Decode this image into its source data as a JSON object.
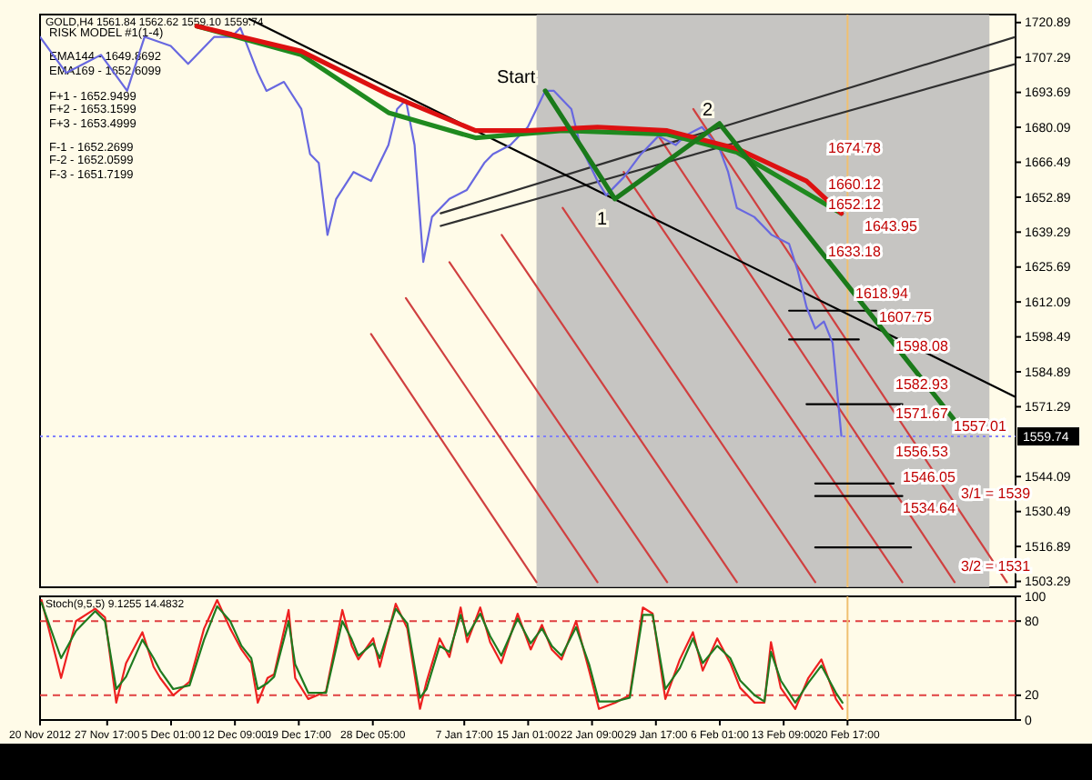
{
  "chart_data": [
    {
      "type": "line",
      "title": "GOLD,H4 1561.84 1562.62 1559.10 1559.74",
      "annotations": [
        "RISK MODEL #1(1-4)",
        "EMA144 - 1649.8692",
        "EMA169 - 1652.6099",
        "F+1 - 1652.9499",
        "F+2 - 1653.1599",
        "F+3 - 1653.4999",
        "F-1 - 1652.2699",
        "F-2 - 1652.0599",
        "F-3 - 1651.7199",
        "Start",
        "1",
        "2",
        "1674.78",
        "1660.12",
        "1652.12",
        "1643.95",
        "1633.18",
        "1618.94",
        "1607.75",
        "1598.08",
        "1582.93",
        "1571.67",
        "1556.53",
        "1546.05",
        "1534.64",
        "1557.01",
        "3/1 = 1539",
        "3/2 = 1531"
      ],
      "xlim": [
        "2012-11-20",
        "2013-03-12"
      ],
      "ylim": [
        1501,
        1724
      ],
      "yticks": [
        1720.89,
        1707.29,
        1693.69,
        1680.09,
        1666.49,
        1652.89,
        1639.29,
        1625.69,
        1612.09,
        1598.49,
        1584.89,
        1571.29,
        1544.09,
        1530.49,
        1516.89,
        1503.29
      ],
      "tick_labels": "y",
      "bands": [
        {
          "axis": "x",
          "from": "2013-01-16",
          "to": "2013-03-09",
          "color": "#b8b8b8"
        }
      ],
      "ref_lines": [
        {
          "axis": "y",
          "value": 1559.74,
          "label": "1559.74",
          "color": "#8080ff",
          "line_style": "dotted"
        },
        {
          "axis": "x",
          "value": "2013-02-20T17:00",
          "color": "#f0c070"
        }
      ],
      "series": [
        {
          "color": "#d04040",
          "x": [
            "2012-12-28",
            "2013-01-16"
          ],
          "values": [
            1599.6,
            1503
          ]
        },
        {
          "color": "#d04040",
          "x": [
            "2013-01-01",
            "2013-01-23"
          ],
          "values": [
            1613.6,
            1503
          ]
        },
        {
          "color": "#d04040",
          "x": [
            "2013-01-06",
            "2013-01-31"
          ],
          "values": [
            1627.6,
            1503
          ]
        },
        {
          "color": "#d04040",
          "x": [
            "2013-01-12",
            "2013-02-08"
          ],
          "values": [
            1638.2,
            1503
          ]
        },
        {
          "color": "#d04040",
          "x": [
            "2013-01-19",
            "2013-02-17"
          ],
          "values": [
            1648.7,
            1503
          ]
        },
        {
          "color": "#d04040",
          "x": [
            "2013-01-26",
            "2013-02-27"
          ],
          "values": [
            1662.7,
            1503
          ]
        },
        {
          "color": "#d04040",
          "x": [
            "2013-01-30",
            "2013-03-05"
          ],
          "values": [
            1676.7,
            1503
          ]
        },
        {
          "color": "#d04040",
          "x": [
            "2013-02-03",
            "2013-03-11"
          ],
          "values": [
            1687.2,
            1503
          ]
        },
        {
          "color": "#303030",
          "x": [
            "2013-01-05",
            "2013-03-12"
          ],
          "values": [
            1646.6,
            1715.3
          ]
        },
        {
          "color": "#303030",
          "x": [
            "2013-01-05",
            "2013-03-12"
          ],
          "values": [
            1641.7,
            1704.8
          ]
        },
        {
          "color": "#000000",
          "x": [
            "2012-12-14",
            "2013-03-12"
          ],
          "values": [
            1722.3,
            1575.1
          ]
        },
        {
          "color": "#000000",
          "x": [
            "2013-02-14",
            "2013-02-24"
          ],
          "values": [
            1608.7,
            1608.7
          ]
        },
        {
          "color": "#000000",
          "x": [
            "2013-02-14",
            "2013-02-22"
          ],
          "values": [
            1597.5,
            1597.5
          ]
        },
        {
          "color": "#000000",
          "x": [
            "2013-02-16",
            "2013-02-27"
          ],
          "values": [
            1572.3,
            1572.3
          ]
        },
        {
          "color": "#000000",
          "x": [
            "2013-02-17",
            "2013-02-26"
          ],
          "values": [
            1541.4,
            1541.4
          ]
        },
        {
          "color": "#000000",
          "x": [
            "2013-02-17",
            "2013-02-27"
          ],
          "values": [
            1536.5,
            1536.5
          ]
        },
        {
          "color": "#000000",
          "x": [
            "2013-02-17",
            "2013-02-28"
          ],
          "values": [
            1516.5,
            1516.5
          ]
        },
        {
          "color": "#6868e0",
          "x": [
            "2012-11-20",
            "2012-11-23",
            "2012-11-25",
            "2012-11-27",
            "2012-11-30",
            "2012-12-02",
            "2012-12-05",
            "2012-12-07",
            "2012-12-10",
            "2012-12-12",
            "2012-12-13",
            "2012-12-15",
            "2012-12-16",
            "2012-12-18",
            "2012-12-20",
            "2012-12-21",
            "2012-12-22",
            "2012-12-23",
            "2012-12-24",
            "2012-12-26",
            "2012-12-28",
            "2012-12-30",
            "2012-12-31",
            "2013-01-01",
            "2013-01-02",
            "2013-01-03",
            "2013-01-04",
            "2013-01-06",
            "2013-01-08",
            "2013-01-10",
            "2013-01-11",
            "2013-01-13",
            "2013-01-15",
            "2013-01-17",
            "2013-01-18",
            "2013-01-20",
            "2013-01-21",
            "2013-01-23",
            "2013-01-24",
            "2013-01-26",
            "2013-01-28",
            "2013-01-30",
            "2013-02-01",
            "2013-02-02",
            "2013-02-04",
            "2013-02-06",
            "2013-02-07",
            "2013-02-08",
            "2013-02-10",
            "2013-02-12",
            "2013-02-14",
            "2013-02-15",
            "2013-02-16",
            "2013-02-17",
            "2013-02-18",
            "2013-02-19",
            "2013-02-20"
          ],
          "values": [
            1715.3,
            1701.3,
            1704.8,
            1708.3,
            1694.3,
            1715.3,
            1711.8,
            1704.8,
            1715.3,
            1715.3,
            1718.8,
            1701.3,
            1694.3,
            1697.8,
            1687.2,
            1669.7,
            1666.2,
            1638.2,
            1652.2,
            1662.7,
            1659.2,
            1673.2,
            1687.2,
            1690.7,
            1673.2,
            1627.7,
            1645.2,
            1652.2,
            1655.7,
            1666.2,
            1669.7,
            1673.2,
            1680.2,
            1694.3,
            1694.3,
            1687.2,
            1673.2,
            1659.2,
            1653.6,
            1660.6,
            1669.7,
            1676.7,
            1673.2,
            1676.7,
            1680.2,
            1671.8,
            1662.7,
            1648.7,
            1645.2,
            1638.2,
            1634.7,
            1624.2,
            1610.1,
            1601.7,
            1604.5,
            1596.1,
            1560
          ]
        },
        {
          "color": "#1f8a1f",
          "x": [
            "2012-12-08",
            "2012-12-20",
            "2012-12-30",
            "2013-01-09",
            "2013-01-19",
            "2013-01-31",
            "2013-02-08",
            "2013-02-20"
          ],
          "values": [
            1719.5,
            1708.3,
            1685.8,
            1676.0,
            1678.8,
            1677.4,
            1670.4,
            1646.6
          ]
        },
        {
          "color": "#dd1111",
          "x": [
            "2012-12-08",
            "2012-12-20",
            "2012-12-30",
            "2013-01-09",
            "2013-01-15",
            "2013-01-23",
            "2013-01-31",
            "2013-02-08",
            "2013-02-16",
            "2013-02-20"
          ],
          "values": [
            1719.5,
            1709.7,
            1692.9,
            1678.8,
            1678.8,
            1680.2,
            1678.8,
            1671.8,
            1659.2,
            1646.6
          ]
        },
        {
          "color": "#1a7a1a",
          "x": [
            "2013-01-17",
            "2013-01-25",
            "2013-02-06",
            "2013-03-05"
          ],
          "values": [
            1694.3,
            1652.2,
            1681.6,
            1566.0
          ]
        }
      ]
    },
    {
      "type": "line",
      "title": "Stoch(9,5,5) 9.1255 14.4832",
      "xlim": [
        "2012-11-20",
        "2013-03-12"
      ],
      "ylim": [
        0,
        100
      ],
      "yticks": [
        0,
        20,
        80,
        100
      ],
      "xticks": [
        {
          "value": "2012-11-20T00:00",
          "label": "20 Nov 2012"
        },
        {
          "value": "2012-11-27T17:00",
          "label": "27 Nov 17:00"
        },
        {
          "value": "2012-12-05T01:00",
          "label": "5 Dec 01:00"
        },
        {
          "value": "2012-12-12T09:00",
          "label": "12 Dec 09:00"
        },
        {
          "value": "2012-12-19T17:00",
          "label": "19 Dec 17:00"
        },
        {
          "value": "2012-12-28T05:00",
          "label": "28 Dec 05:00"
        },
        {
          "value": "2013-01-07T17:00",
          "label": "7 Jan 17:00"
        },
        {
          "value": "2013-01-15T01:00",
          "label": "15 Jan 01:00"
        },
        {
          "value": "2013-01-22T09:00",
          "label": "22 Jan 09:00"
        },
        {
          "value": "2013-01-29T17:00",
          "label": "29 Jan 17:00"
        },
        {
          "value": "2013-02-06T01:00",
          "label": "6 Feb 01:00"
        },
        {
          "value": "2013-02-13T09:00",
          "label": "13 Feb 09:00"
        },
        {
          "value": "2013-02-20T17:00",
          "label": "20 Feb 17:00"
        }
      ],
      "ref_lines": [
        {
          "axis": "y",
          "value": 20,
          "color": "#e04040",
          "line_style": "dashed"
        },
        {
          "axis": "y",
          "value": 80,
          "color": "#e04040",
          "line_style": "dashed"
        },
        {
          "axis": "x",
          "value": "2013-02-20T17:00",
          "color": "#f0c070"
        }
      ],
      "x": [
        "2012-11-20T04:00",
        "2012-11-22T10:00",
        "2012-11-24T03:00",
        "2012-11-26T08:00",
        "2012-11-27T11:00",
        "2012-11-28T18:00",
        "2012-11-29T21:00",
        "2012-12-01T18:00",
        "2012-12-03T01:00",
        "2012-12-03T19:00",
        "2012-12-05T07:00",
        "2012-12-07T04:00",
        "2012-12-08T20:00",
        "2012-12-10T08:00",
        "2012-12-11T20:00",
        "2012-12-13T03:00",
        "2012-12-14T06:00",
        "2012-12-15T00:00",
        "2012-12-16T03:00",
        "2012-12-16T21:00",
        "2012-12-18T13:00",
        "2012-12-19T07:00",
        "2012-12-20T19:00",
        "2012-12-22T20:00",
        "2012-12-24T17:00",
        "2012-12-25T19:00",
        "2012-12-26T13:00",
        "2012-12-28T06:00",
        "2012-12-29T00:00",
        "2012-12-30T20:00",
        "2013-01-01T04:00",
        "2013-01-02T15:00",
        "2013-01-03T09:00",
        "2013-01-04T21:00",
        "2013-01-06T00:00",
        "2013-01-07T07:00",
        "2013-01-08T01:00",
        "2013-01-09T13:00",
        "2013-01-10T16:00",
        "2013-01-11T23:00",
        "2013-01-13T20:00",
        "2013-01-15T08:00",
        "2013-01-16T15:00",
        "2013-01-17T18:00",
        "2013-01-18T21:00",
        "2013-01-20T13:00",
        "2013-01-22T01:00",
        "2013-01-23T04:00",
        "2013-01-25T01:00",
        "2013-01-26T17:00",
        "2013-01-28T05:00",
        "2013-01-29T08:00",
        "2013-01-30T19:00",
        "2013-02-01T11:00",
        "2013-02-02T23:00",
        "2013-02-04T02:00",
        "2013-02-05T18:00",
        "2013-02-07T06:00",
        "2013-02-08T09:00",
        "2013-02-10T01:00",
        "2013-02-11T04:00",
        "2013-02-11T22:00",
        "2013-02-13T01:00",
        "2013-02-14T17:00",
        "2013-02-16T05:00",
        "2013-02-17T17:00",
        "2013-02-19T09:00",
        "2013-02-20T03:00"
      ],
      "series": [
        {
          "color": "#ee2020",
          "values": [
            97,
            34,
            80,
            90,
            83,
            14,
            46,
            71,
            43,
            34,
            20,
            31,
            74,
            97,
            74,
            57,
            46,
            14,
            34,
            37,
            89,
            34,
            17,
            23,
            89,
            60,
            49,
            66,
            43,
            94,
            74,
            9,
            31,
            66,
            51,
            91,
            63,
            91,
            63,
            46,
            86,
            57,
            77,
            57,
            49,
            80,
            40,
            9,
            14,
            20,
            91,
            86,
            17,
            49,
            71,
            40,
            66,
            46,
            26,
            14,
            14,
            63,
            26,
            9,
            34,
            49,
            17,
            9
          ]
        },
        {
          "color": "#1f7a1f",
          "values": [
            95,
            50,
            72,
            88,
            80,
            25,
            35,
            65,
            50,
            40,
            25,
            28,
            65,
            92,
            80,
            60,
            50,
            25,
            30,
            35,
            80,
            45,
            22,
            22,
            80,
            65,
            52,
            62,
            50,
            90,
            78,
            18,
            25,
            60,
            55,
            85,
            68,
            86,
            68,
            52,
            82,
            62,
            74,
            60,
            52,
            75,
            45,
            15,
            15,
            18,
            85,
            85,
            25,
            42,
            66,
            46,
            60,
            50,
            32,
            20,
            15,
            55,
            32,
            14,
            30,
            44,
            22,
            14
          ]
        }
      ]
    }
  ]
}
